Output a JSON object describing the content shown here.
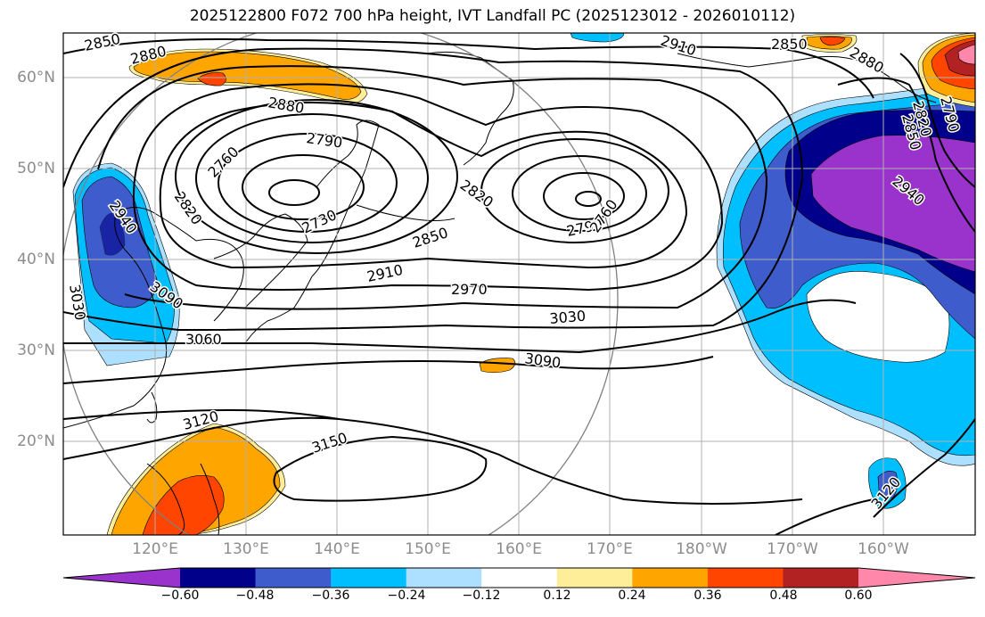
{
  "title": "2025122800 F072 700 hPa height, IVT Landfall PC (2025123012 - 2026010112)",
  "lat_labels": [
    "60°N",
    "50°N",
    "40°N",
    "30°N",
    "20°N"
  ],
  "lon_labels": [
    "120°E",
    "130°E",
    "140°E",
    "150°E",
    "160°E",
    "170°E",
    "180°W",
    "170°W",
    "160°W"
  ],
  "contour_labels": [
    "2850",
    "2880",
    "2880",
    "2790",
    "2760",
    "2820",
    "2730",
    "2820",
    "2850",
    "2910",
    "2970",
    "3030",
    "3090",
    "3060",
    "3090",
    "3030",
    "3120",
    "3150",
    "2790",
    "2760",
    "2910",
    "2850",
    "2880",
    "2820",
    "2850",
    "2790",
    "2940",
    "2940",
    "3120"
  ],
  "colorbar": {
    "ticks": [
      "−0.60",
      "−0.48",
      "−0.36",
      "−0.24",
      "−0.12",
      "0.12",
      "0.24",
      "0.36",
      "0.48",
      "0.60"
    ],
    "colors": [
      "#9933cc",
      "#00008b",
      "#3f5ccc",
      "#00bfff",
      "#addfff",
      "#ffffff",
      "#ffee99",
      "#ffa500",
      "#ff4500",
      "#b22222",
      "#ff88aa"
    ]
  },
  "chart_data": {
    "type": "heatmap",
    "field_contours": "700 hPa height",
    "field_shaded": "IVT Landfall PC",
    "contour_levels": [
      2730,
      2760,
      2790,
      2820,
      2850,
      2880,
      2910,
      2940,
      2970,
      3000,
      3030,
      3060,
      3090,
      3120,
      3150
    ],
    "shading_levels": [
      -0.6,
      -0.48,
      -0.36,
      -0.24,
      -0.12,
      0.12,
      0.24,
      0.36,
      0.48,
      0.6
    ],
    "lat_range": [
      "~10°N",
      "~65°N"
    ],
    "lon_range": [
      "~110°E",
      "~150°W"
    ],
    "grid": true
  }
}
